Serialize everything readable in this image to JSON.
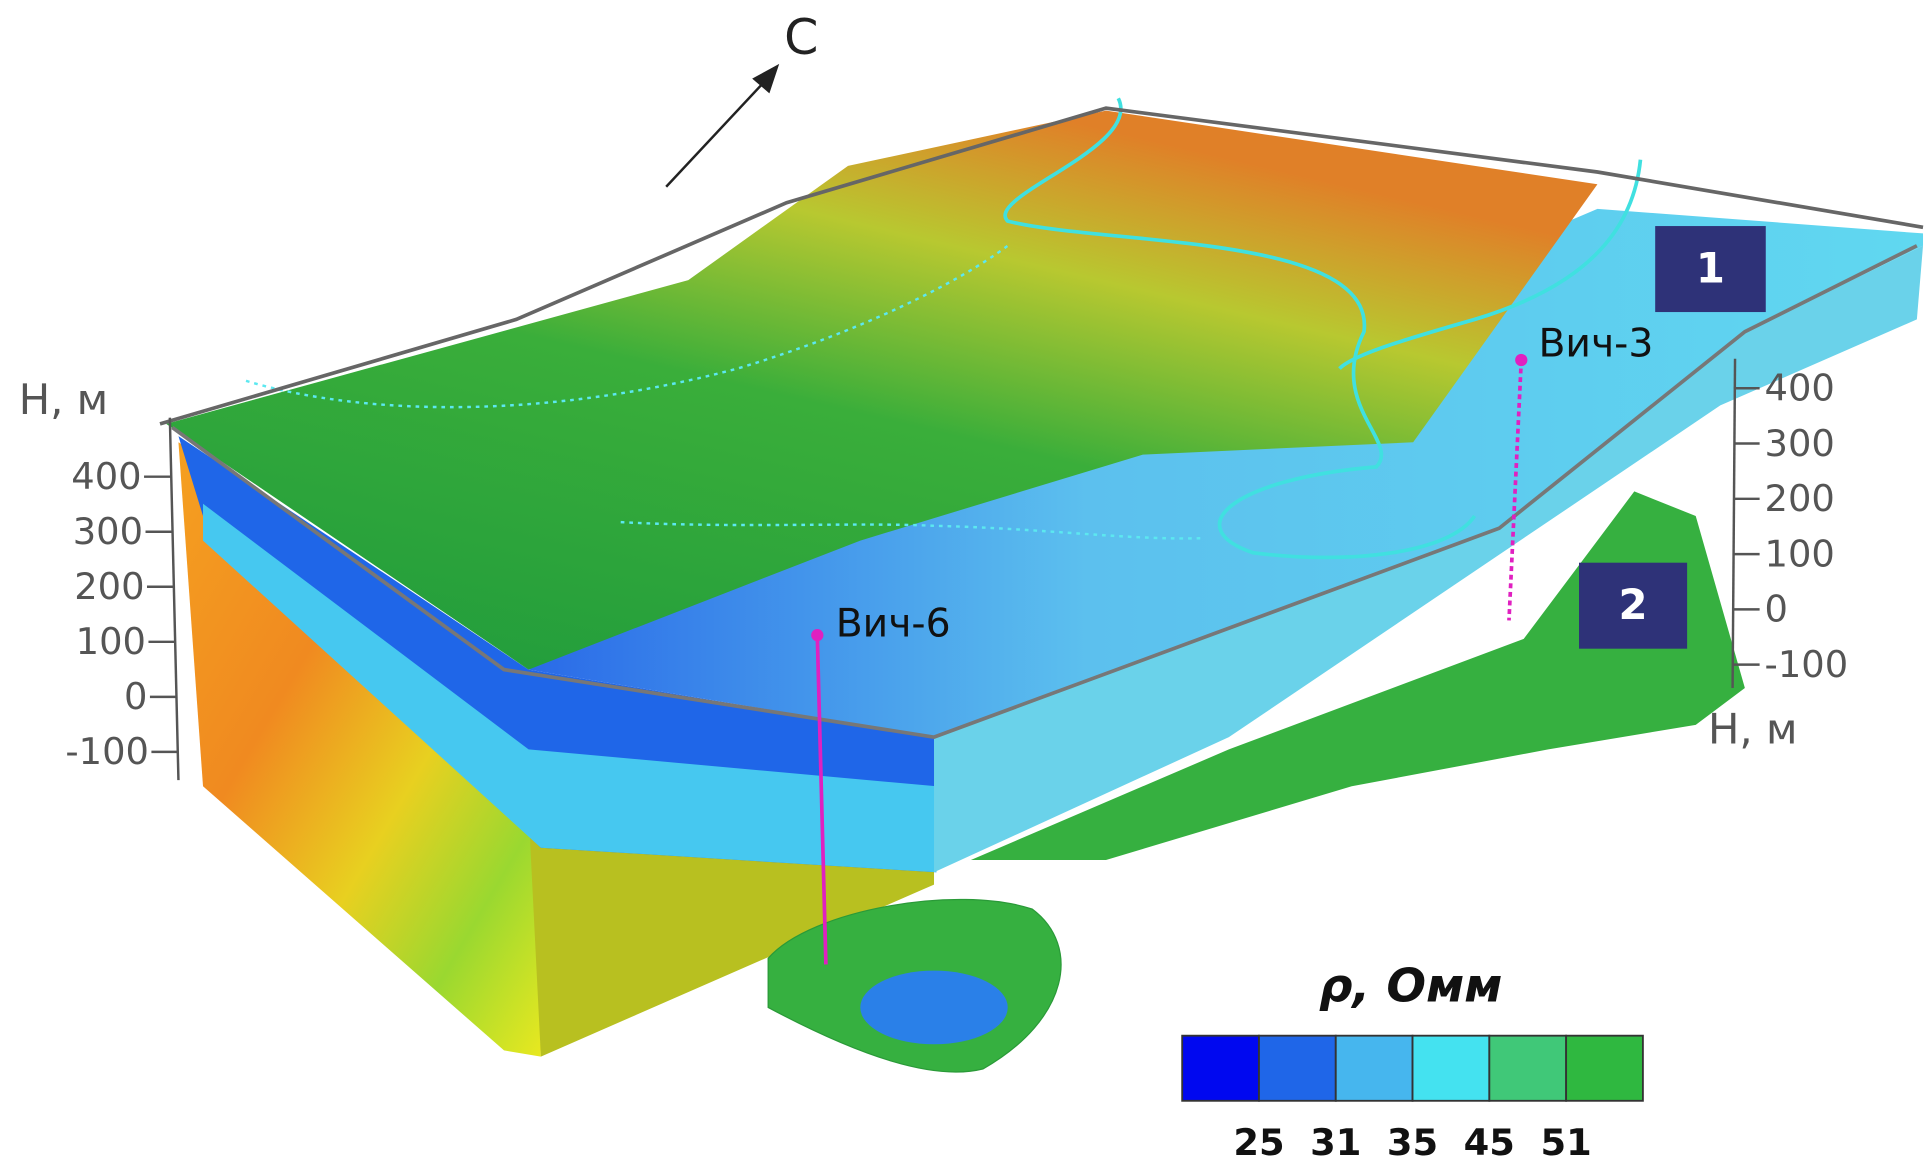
{
  "north_label": "С",
  "axes": {
    "left": {
      "title": "H, м",
      "ticks": [
        "400",
        "300",
        "200",
        "100",
        "0",
        "-100"
      ]
    },
    "right": {
      "title": "H, м",
      "ticks": [
        "400",
        "300",
        "200",
        "100",
        "0",
        "-100"
      ]
    }
  },
  "wells": [
    {
      "label": "Вич-6"
    },
    {
      "label": "Вич-3"
    }
  ],
  "markers": [
    "1",
    "2"
  ],
  "legend": {
    "title": "ρ, Омм",
    "colors": [
      "#0008f0",
      "#1f66e8",
      "#46b6ee",
      "#44e2f0",
      "#40c878",
      "#2fb840"
    ],
    "labels": [
      "25",
      "31",
      "35",
      "45",
      "51"
    ]
  }
}
